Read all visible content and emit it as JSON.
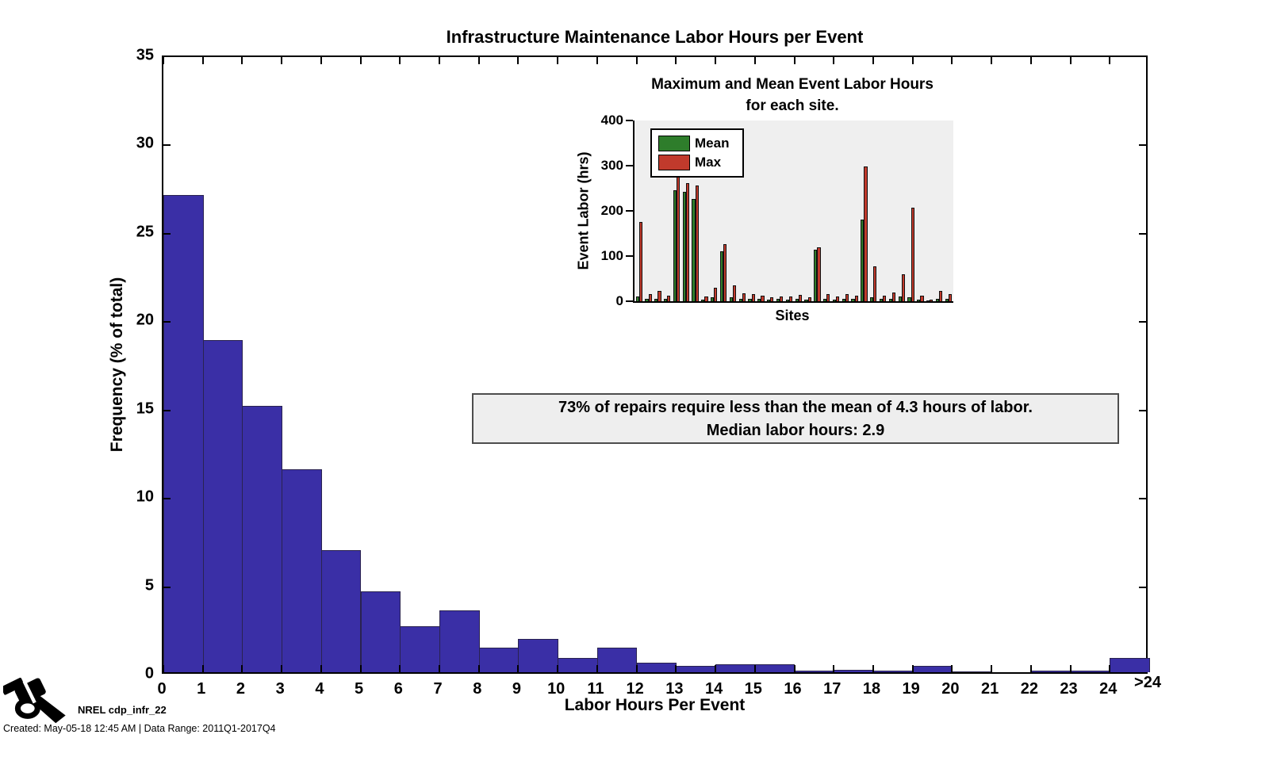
{
  "chart_data": [
    {
      "type": "bar",
      "role": "main-histogram",
      "title": "Infrastructure Maintenance Labor Hours per Event",
      "xlabel": "Labor Hours Per Event",
      "ylabel": "Frequency (% of total)",
      "bin_edge_labels": [
        "0",
        "1",
        "2",
        "3",
        "4",
        "5",
        "6",
        "7",
        "8",
        "9",
        "10",
        "11",
        "12",
        "13",
        "14",
        "15",
        "16",
        "17",
        "18",
        "19",
        "20",
        "21",
        "22",
        "23",
        "24",
        ">24"
      ],
      "values": [
        27.0,
        18.8,
        15.1,
        11.5,
        6.9,
        4.6,
        2.6,
        3.5,
        1.4,
        1.9,
        0.8,
        1.4,
        0.55,
        0.35,
        0.45,
        0.45,
        0.1,
        0.12,
        0.1,
        0.35,
        0.05,
        0,
        0.08,
        0.08,
        0.8
      ],
      "ylim": [
        0,
        35
      ],
      "yticks": [
        0,
        5,
        10,
        15,
        20,
        25,
        30,
        35
      ],
      "bar_color": "#3a2fa6",
      "grid": false
    },
    {
      "type": "bar",
      "role": "inset-grouped-bars",
      "title_line1": "Maximum and Mean Event Labor Hours",
      "title_line2": "for each site.",
      "xlabel": "Sites",
      "ylabel": "Event Labor (hrs)",
      "ylim": [
        0,
        400
      ],
      "yticks": [
        0,
        100,
        200,
        300,
        400
      ],
      "legend_position": "top-left",
      "plot_bg": "#efefef",
      "series": [
        {
          "name": "Mean",
          "color": "#2e7d2b",
          "values": [
            10,
            5,
            6,
            5,
            246,
            243,
            227,
            4,
            8,
            111,
            8,
            6,
            5,
            5,
            4,
            5,
            4,
            5,
            4,
            114,
            6,
            4,
            6,
            5,
            181,
            8,
            5,
            6,
            10,
            8,
            4,
            2,
            6,
            5
          ]
        },
        {
          "name": "Max",
          "color": "#c13a2c",
          "values": [
            175,
            15,
            22,
            12,
            293,
            261,
            257,
            10,
            30,
            126,
            35,
            17,
            15,
            12,
            8,
            10,
            10,
            14,
            8,
            120,
            15,
            10,
            16,
            12,
            299,
            78,
            12,
            20,
            60,
            207,
            12,
            3,
            22,
            16
          ]
        }
      ]
    }
  ],
  "annotation": {
    "line1": "73% of repairs require less than the mean of 4.3 hours of labor.",
    "line2": "Median labor hours: 2.9"
  },
  "footer": {
    "logo_icon": "fuel-nozzle-icon",
    "label": "NREL cdp_infr_22",
    "created": "Created: May-05-18 12:45 AM | Data Range: 2011Q1-2017Q4"
  },
  "colors": {
    "hist_bar": "#3a2fa6",
    "mean_green": "#2e7d2b",
    "max_red": "#c13a2c",
    "inset_bg": "#efefef",
    "annotation_bg": "#eeeeee",
    "annotation_border": "#4d4d4d",
    "axis": "#000000"
  }
}
